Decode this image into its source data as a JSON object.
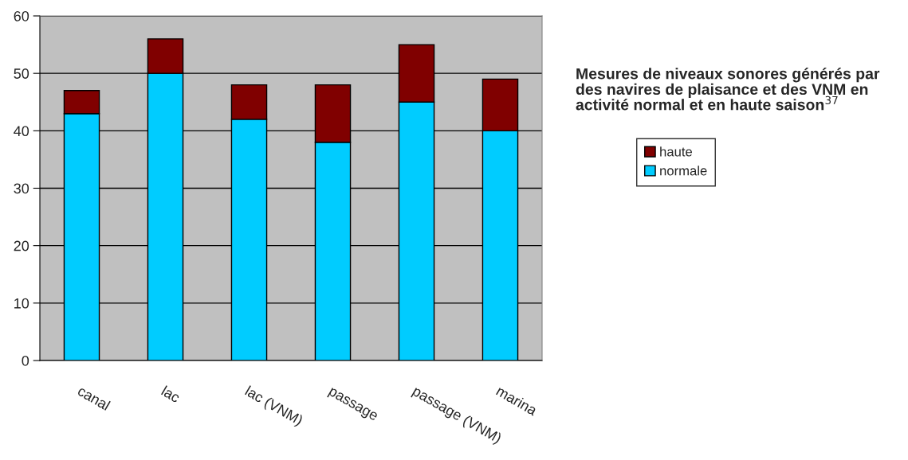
{
  "chart_data": {
    "type": "bar",
    "stacked": true,
    "title": "Mesures de niveaux sonores générés par des navires de plaisance et des VNM en activité normal et en haute saison$^{37}$",
    "categories": [
      "canal",
      "lac",
      "lac (VNM)",
      "passage",
      "passage (VNM)",
      "marina"
    ],
    "series": [
      {
        "name": "normale",
        "color": "#00ccff",
        "values": [
          43,
          50,
          42,
          38,
          45,
          40
        ]
      },
      {
        "name": "haute",
        "color": "#800000",
        "values": [
          4,
          6,
          6,
          10,
          10,
          9
        ]
      }
    ],
    "ylim": [
      0,
      60
    ],
    "yticks": [
      0,
      10,
      20,
      30,
      40,
      50,
      60
    ],
    "grid": "y",
    "legend": "right"
  }
}
